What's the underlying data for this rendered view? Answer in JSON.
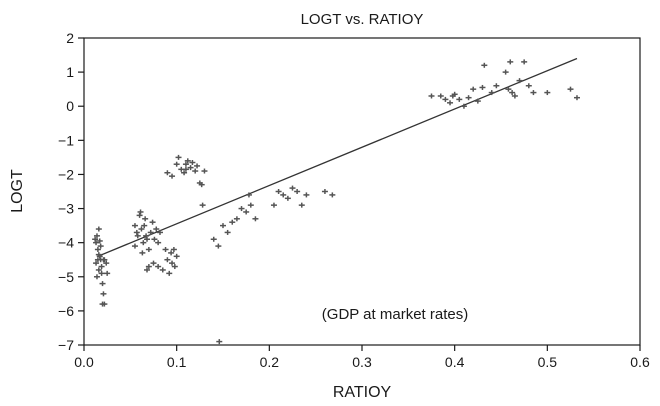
{
  "chart_data": {
    "type": "scatter",
    "title": "LOGT vs. RATIOY",
    "xlabel": "RATIOY",
    "ylabel": "LOGT",
    "annotation": "(GDP at market rates)",
    "xlim": [
      0.0,
      0.6
    ],
    "ylim": [
      -7,
      2
    ],
    "xticks": [
      0.0,
      0.1,
      0.2,
      0.3,
      0.4,
      0.5,
      0.6
    ],
    "xtick_labels": [
      "0.0",
      "0.1",
      "0.2",
      "0.3",
      "0.4",
      "0.5",
      "0.6"
    ],
    "yticks": [
      2,
      1,
      0,
      -1,
      -2,
      -3,
      -4,
      -5,
      -6,
      -7
    ],
    "ytick_labels": [
      "2",
      "1",
      "0",
      "−1",
      "−2",
      "−3",
      "−4",
      "−5",
      "−6",
      "−7"
    ],
    "grid": false,
    "marker_color": "#555555",
    "line_color": "#333333",
    "fit_line": {
      "x": [
        0.015,
        0.532
      ],
      "y": [
        -4.4,
        1.4
      ]
    },
    "points": [
      [
        0.012,
        -3.9
      ],
      [
        0.013,
        -4.0
      ],
      [
        0.014,
        -3.8
      ],
      [
        0.015,
        -4.2
      ],
      [
        0.016,
        -3.6
      ],
      [
        0.013,
        -4.6
      ],
      [
        0.015,
        -4.5
      ],
      [
        0.016,
        -4.8
      ],
      [
        0.018,
        -4.5
      ],
      [
        0.017,
        -4.4
      ],
      [
        0.014,
        -5.0
      ],
      [
        0.019,
        -4.9
      ],
      [
        0.02,
        -5.2
      ],
      [
        0.021,
        -5.5
      ],
      [
        0.022,
        -5.8
      ],
      [
        0.02,
        -5.8
      ],
      [
        0.019,
        -4.7
      ],
      [
        0.022,
        -4.5
      ],
      [
        0.024,
        -4.6
      ],
      [
        0.025,
        -4.9
      ],
      [
        0.018,
        -4.1
      ],
      [
        0.016,
        -4.35
      ],
      [
        0.021,
        -4.5
      ],
      [
        0.017,
        -3.95
      ],
      [
        0.055,
        -3.5
      ],
      [
        0.058,
        -3.8
      ],
      [
        0.06,
        -3.2
      ],
      [
        0.062,
        -3.6
      ],
      [
        0.064,
        -4.0
      ],
      [
        0.066,
        -3.3
      ],
      [
        0.068,
        -3.9
      ],
      [
        0.07,
        -4.2
      ],
      [
        0.055,
        -4.1
      ],
      [
        0.057,
        -3.7
      ],
      [
        0.061,
        -3.1
      ],
      [
        0.065,
        -3.5
      ],
      [
        0.067,
        -3.8
      ],
      [
        0.072,
        -3.7
      ],
      [
        0.074,
        -3.4
      ],
      [
        0.076,
        -3.9
      ],
      [
        0.078,
        -3.6
      ],
      [
        0.08,
        -4.0
      ],
      [
        0.082,
        -3.7
      ],
      [
        0.063,
        -4.3
      ],
      [
        0.07,
        -4.7
      ],
      [
        0.068,
        -4.8
      ],
      [
        0.075,
        -4.6
      ],
      [
        0.08,
        -4.7
      ],
      [
        0.085,
        -4.8
      ],
      [
        0.09,
        -4.5
      ],
      [
        0.092,
        -4.9
      ],
      [
        0.095,
        -4.6
      ],
      [
        0.098,
        -4.7
      ],
      [
        0.1,
        -4.4
      ],
      [
        0.088,
        -4.2
      ],
      [
        0.094,
        -4.3
      ],
      [
        0.097,
        -4.2
      ],
      [
        0.09,
        -1.95
      ],
      [
        0.095,
        -2.05
      ],
      [
        0.1,
        -1.7
      ],
      [
        0.102,
        -1.5
      ],
      [
        0.105,
        -1.85
      ],
      [
        0.108,
        -1.95
      ],
      [
        0.11,
        -1.7
      ],
      [
        0.112,
        -1.6
      ],
      [
        0.115,
        -1.8
      ],
      [
        0.117,
        -1.65
      ],
      [
        0.12,
        -1.9
      ],
      [
        0.122,
        -1.75
      ],
      [
        0.125,
        -2.25
      ],
      [
        0.127,
        -2.3
      ],
      [
        0.13,
        -1.9
      ],
      [
        0.11,
        -1.85
      ],
      [
        0.128,
        -2.9
      ],
      [
        0.14,
        -3.9
      ],
      [
        0.145,
        -4.1
      ],
      [
        0.15,
        -3.5
      ],
      [
        0.155,
        -3.7
      ],
      [
        0.16,
        -3.4
      ],
      [
        0.165,
        -3.3
      ],
      [
        0.17,
        -3.0
      ],
      [
        0.175,
        -3.1
      ],
      [
        0.18,
        -2.9
      ],
      [
        0.185,
        -3.3
      ],
      [
        0.178,
        -2.6
      ],
      [
        0.205,
        -2.9
      ],
      [
        0.21,
        -2.5
      ],
      [
        0.215,
        -2.6
      ],
      [
        0.22,
        -2.7
      ],
      [
        0.225,
        -2.4
      ],
      [
        0.23,
        -2.5
      ],
      [
        0.235,
        -2.9
      ],
      [
        0.24,
        -2.6
      ],
      [
        0.26,
        -2.5
      ],
      [
        0.268,
        -2.6
      ],
      [
        0.146,
        -6.9
      ],
      [
        0.375,
        0.3
      ],
      [
        0.385,
        0.3
      ],
      [
        0.39,
        0.2
      ],
      [
        0.395,
        0.1
      ],
      [
        0.398,
        0.3
      ],
      [
        0.4,
        0.35
      ],
      [
        0.405,
        0.2
      ],
      [
        0.41,
        0.0
      ],
      [
        0.415,
        0.25
      ],
      [
        0.42,
        0.5
      ],
      [
        0.425,
        0.15
      ],
      [
        0.43,
        0.55
      ],
      [
        0.432,
        1.2
      ],
      [
        0.44,
        0.4
      ],
      [
        0.445,
        0.6
      ],
      [
        0.46,
        1.3
      ],
      [
        0.462,
        0.4
      ],
      [
        0.465,
        0.3
      ],
      [
        0.47,
        0.75
      ],
      [
        0.475,
        1.3
      ],
      [
        0.48,
        0.6
      ],
      [
        0.485,
        0.4
      ],
      [
        0.5,
        0.4
      ],
      [
        0.525,
        0.5
      ],
      [
        0.532,
        0.25
      ],
      [
        0.455,
        1.0
      ],
      [
        0.458,
        0.5
      ]
    ]
  }
}
